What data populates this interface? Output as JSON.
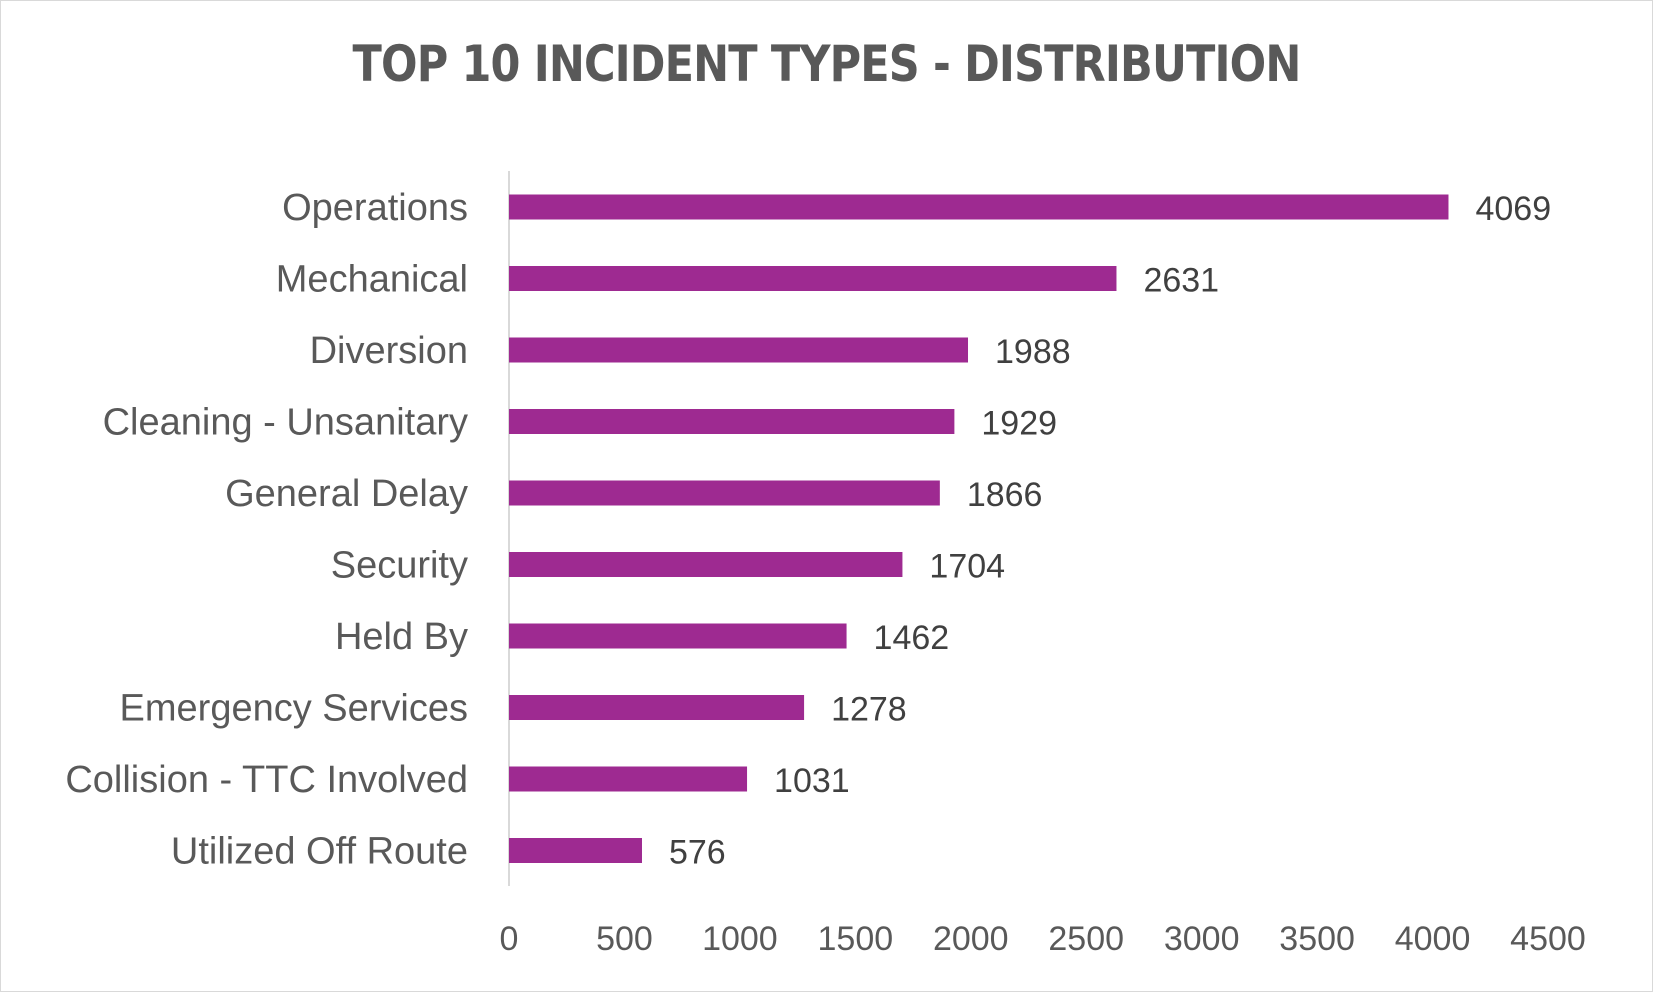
{
  "chart_data": {
    "type": "bar",
    "orientation": "horizontal",
    "title": "TOP 10 INCIDENT TYPES - DISTRIBUTION",
    "categories": [
      "Operations",
      "Mechanical",
      "Diversion",
      "Cleaning - Unsanitary",
      "General Delay",
      "Security",
      "Held By",
      "Emergency Services",
      "Collision - TTC Involved",
      "Utilized Off Route"
    ],
    "values": [
      4069,
      2631,
      1988,
      1929,
      1866,
      1704,
      1462,
      1278,
      1031,
      576
    ],
    "xlim": [
      0,
      4500
    ],
    "xticks": [
      "0",
      "500",
      "1000",
      "1500",
      "2000",
      "2500",
      "3000",
      "3500",
      "4000",
      "4500"
    ],
    "data_labels": true,
    "grid": false,
    "legend": "none",
    "bar_color": "#9e2a91"
  }
}
